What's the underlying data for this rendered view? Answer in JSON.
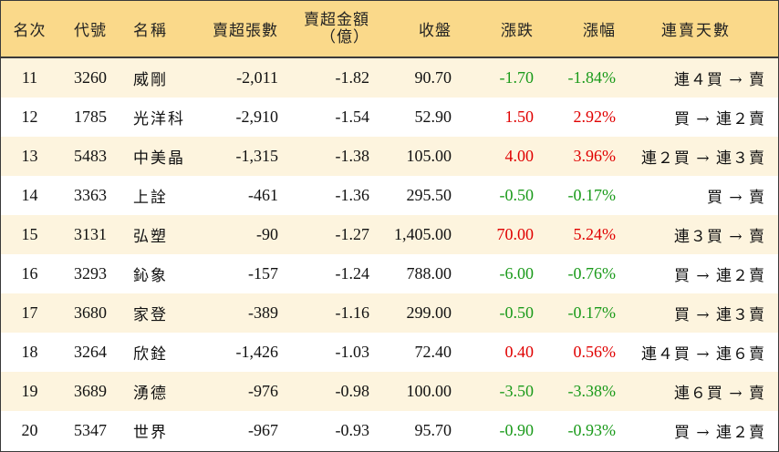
{
  "colors": {
    "header_bg": "#fad98a",
    "stripe_bg": "#fdf4de",
    "up": "#e00000",
    "down": "#1a9a1a"
  },
  "headers": {
    "rank": "名次",
    "code": "代號",
    "name": "名稱",
    "sell_lots": "賣超張數",
    "sell_amount_line1": "賣超金額",
    "sell_amount_line2": "（億）",
    "close": "收盤",
    "change": "漲跌",
    "pct": "漲幅",
    "streak": "連賣天數"
  },
  "rows": [
    {
      "rank": "11",
      "code": "3260",
      "name": "威剛",
      "sell_lots": "-2,011",
      "sell_amount": "-1.82",
      "close": "90.70",
      "change": "-1.70",
      "pct": "-1.84%",
      "streak": "連４買 → 賣",
      "trend": "down"
    },
    {
      "rank": "12",
      "code": "1785",
      "name": "光洋科",
      "sell_lots": "-2,910",
      "sell_amount": "-1.54",
      "close": "52.90",
      "change": "1.50",
      "pct": "2.92%",
      "streak": "買 → 連２賣",
      "trend": "up"
    },
    {
      "rank": "13",
      "code": "5483",
      "name": "中美晶",
      "sell_lots": "-1,315",
      "sell_amount": "-1.38",
      "close": "105.00",
      "change": "4.00",
      "pct": "3.96%",
      "streak": "連２買 → 連３賣",
      "trend": "up"
    },
    {
      "rank": "14",
      "code": "3363",
      "name": "上詮",
      "sell_lots": "-461",
      "sell_amount": "-1.36",
      "close": "295.50",
      "change": "-0.50",
      "pct": "-0.17%",
      "streak": "買 → 賣",
      "trend": "down"
    },
    {
      "rank": "15",
      "code": "3131",
      "name": "弘塑",
      "sell_lots": "-90",
      "sell_amount": "-1.27",
      "close": "1,405.00",
      "change": "70.00",
      "pct": "5.24%",
      "streak": "連３買 → 賣",
      "trend": "up"
    },
    {
      "rank": "16",
      "code": "3293",
      "name": "鈊象",
      "sell_lots": "-157",
      "sell_amount": "-1.24",
      "close": "788.00",
      "change": "-6.00",
      "pct": "-0.76%",
      "streak": "買 → 連２賣",
      "trend": "down"
    },
    {
      "rank": "17",
      "code": "3680",
      "name": "家登",
      "sell_lots": "-389",
      "sell_amount": "-1.16",
      "close": "299.00",
      "change": "-0.50",
      "pct": "-0.17%",
      "streak": "買 → 連３賣",
      "trend": "down"
    },
    {
      "rank": "18",
      "code": "3264",
      "name": "欣銓",
      "sell_lots": "-1,426",
      "sell_amount": "-1.03",
      "close": "72.40",
      "change": "0.40",
      "pct": "0.56%",
      "streak": "連４買 → 連６賣",
      "trend": "up"
    },
    {
      "rank": "19",
      "code": "3689",
      "name": "湧德",
      "sell_lots": "-976",
      "sell_amount": "-0.98",
      "close": "100.00",
      "change": "-3.50",
      "pct": "-3.38%",
      "streak": "連６買 → 賣",
      "trend": "down"
    },
    {
      "rank": "20",
      "code": "5347",
      "name": "世界",
      "sell_lots": "-967",
      "sell_amount": "-0.93",
      "close": "95.70",
      "change": "-0.90",
      "pct": "-0.93%",
      "streak": "買 → 連２賣",
      "trend": "down"
    }
  ]
}
